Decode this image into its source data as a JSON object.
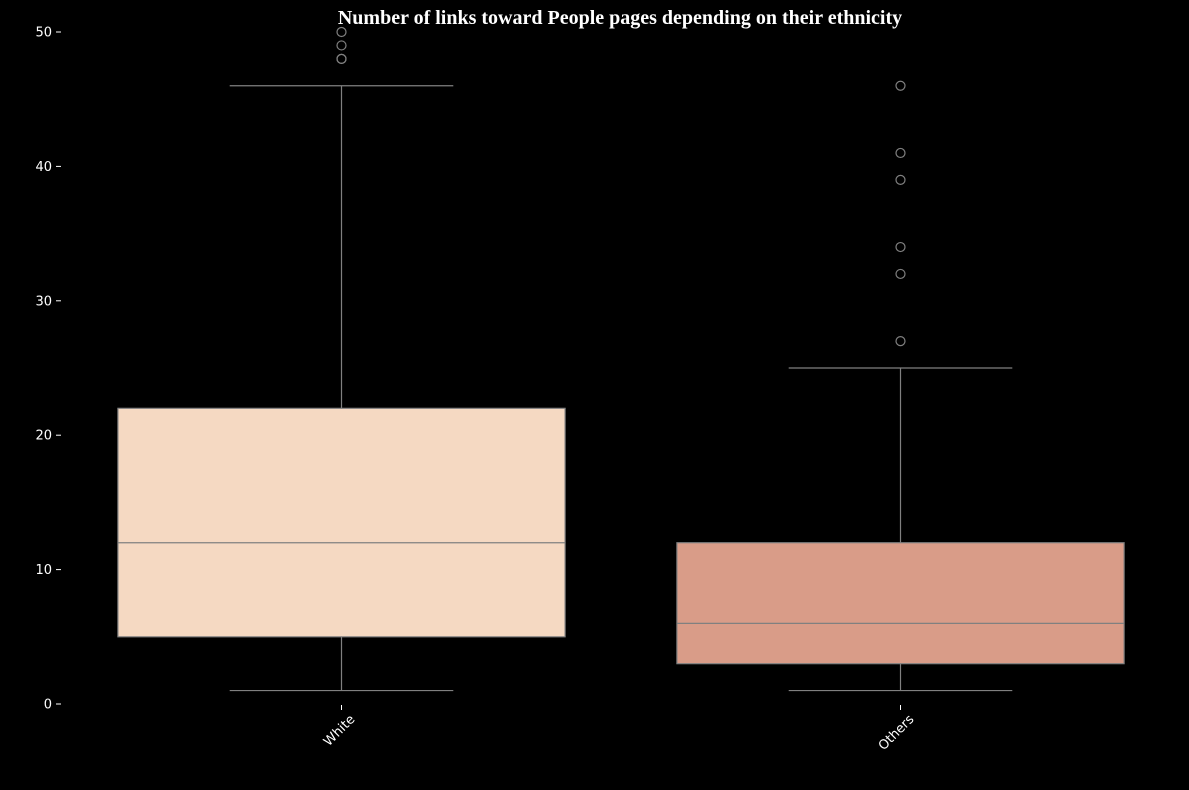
{
  "chart_data": {
    "type": "box",
    "title": "Number of links toward People pages depending on their ethnicity",
    "xlabel": "",
    "ylabel": "",
    "ylim": [
      0,
      50
    ],
    "yticks": [
      "0",
      "10",
      "20",
      "30",
      "40",
      "50"
    ],
    "grid": false,
    "legend": "none",
    "x_tick_rotation_deg": 45,
    "background_color": "#000000",
    "line_color": "#808080",
    "categories": [
      "White",
      "Others"
    ],
    "boxes": [
      {
        "category": "White",
        "whisker_low": 1,
        "q1": 5,
        "median": 12,
        "q3": 22,
        "whisker_high": 46,
        "outliers": [
          48,
          48,
          49,
          50
        ],
        "color": "#f5d9c2"
      },
      {
        "category": "Others",
        "whisker_low": 1,
        "q1": 3,
        "median": 6,
        "q3": 12,
        "whisker_high": 25,
        "outliers": [
          27,
          32,
          34,
          39,
          41,
          46
        ],
        "color": "#d99c88"
      }
    ]
  }
}
